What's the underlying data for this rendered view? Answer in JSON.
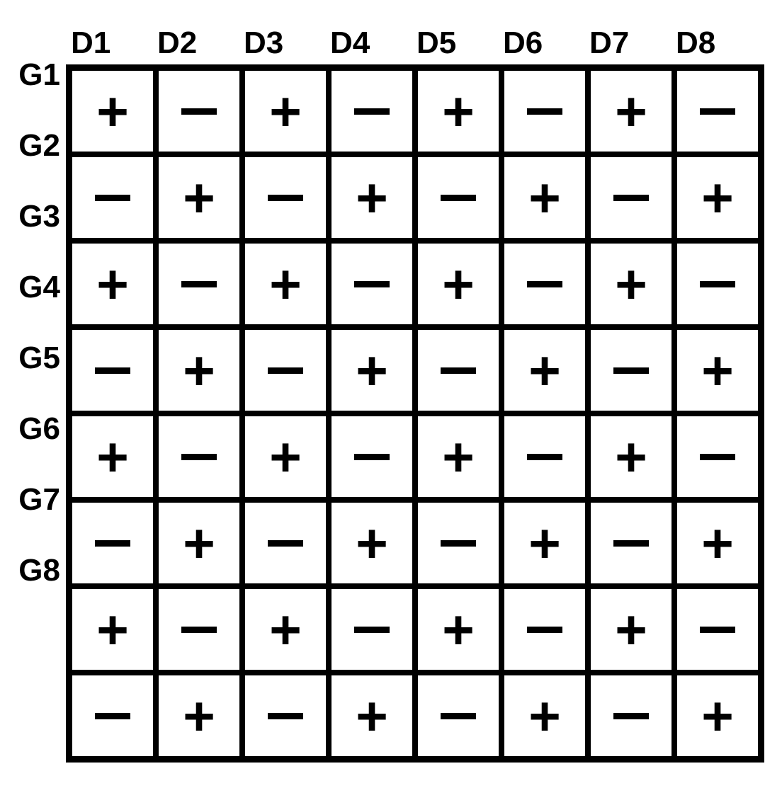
{
  "diagram": {
    "type": "table",
    "col_labels": [
      "D1",
      "D2",
      "D3",
      "D4",
      "D5",
      "D6",
      "D7",
      "D8"
    ],
    "row_labels": [
      "G1",
      "G2",
      "G3",
      "G4",
      "G5",
      "G6",
      "G7",
      "G8"
    ],
    "cells": [
      [
        "+",
        "-",
        "+",
        "-",
        "+",
        "-",
        "+",
        "-"
      ],
      [
        "-",
        "+",
        "-",
        "+",
        "-",
        "+",
        "-",
        "+"
      ],
      [
        "+",
        "-",
        "+",
        "-",
        "+",
        "-",
        "+",
        "-"
      ],
      [
        "-",
        "+",
        "-",
        "+",
        "-",
        "+",
        "-",
        "+"
      ],
      [
        "+",
        "-",
        "+",
        "-",
        "+",
        "-",
        "+",
        "-"
      ],
      [
        "-",
        "+",
        "-",
        "+",
        "-",
        "+",
        "-",
        "+"
      ],
      [
        "+",
        "-",
        "+",
        "-",
        "+",
        "-",
        "+",
        "-"
      ],
      [
        "-",
        "+",
        "-",
        "+",
        "-",
        "+",
        "-",
        "+"
      ]
    ],
    "background_color": "#ffffff",
    "border_color": "#000000",
    "text_color": "#000000",
    "outer_border_width": 5,
    "cell_border_width": 4,
    "cell_size": 122,
    "label_fontsize": 44,
    "symbol_fontsize": 78
  }
}
